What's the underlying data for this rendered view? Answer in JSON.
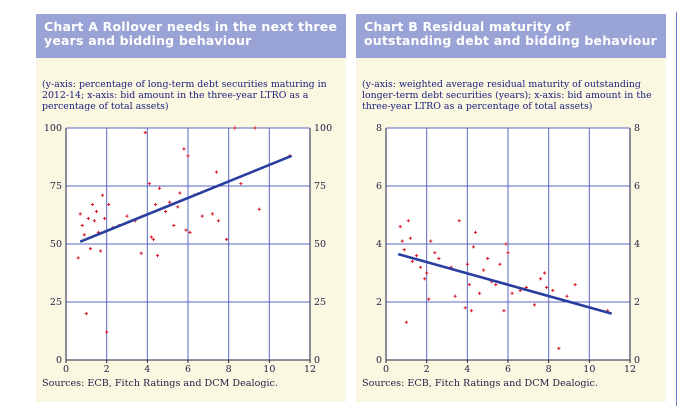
{
  "chart_data": [
    {
      "type": "scatter",
      "title": "Chart A Rollover needs in the next three years and bidding behaviour",
      "note": "(y-axis: percentage of long-term debt securities maturing in 2012-14; x-axis: bid amount in the three-year LTRO as a percentage of total assets)",
      "source": "Sources: ECB, Fitch Ratings and DCM Dealogic.",
      "xlim": [
        0,
        12
      ],
      "ylim": [
        0,
        100
      ],
      "xticks": [
        "0",
        "2",
        "4",
        "6",
        "8",
        "10",
        "12"
      ],
      "yticks": [
        "0",
        "25",
        "50",
        "75",
        "100"
      ],
      "grid": true,
      "points": [
        [
          0.6,
          44
        ],
        [
          0.7,
          63
        ],
        [
          0.8,
          58
        ],
        [
          0.9,
          54
        ],
        [
          1.0,
          20
        ],
        [
          1.1,
          61
        ],
        [
          1.2,
          48
        ],
        [
          1.3,
          67
        ],
        [
          1.4,
          60
        ],
        [
          1.5,
          64
        ],
        [
          1.6,
          55
        ],
        [
          1.7,
          47
        ],
        [
          1.8,
          71
        ],
        [
          1.9,
          61
        ],
        [
          2.0,
          12
        ],
        [
          2.1,
          67
        ],
        [
          2.3,
          57
        ],
        [
          2.6,
          58
        ],
        [
          3.0,
          62
        ],
        [
          3.4,
          60
        ],
        [
          3.7,
          46
        ],
        [
          3.9,
          98
        ],
        [
          4.1,
          76
        ],
        [
          4.2,
          53
        ],
        [
          4.3,
          52
        ],
        [
          4.4,
          67
        ],
        [
          4.5,
          45
        ],
        [
          4.6,
          74
        ],
        [
          4.9,
          64
        ],
        [
          5.1,
          68
        ],
        [
          5.3,
          58
        ],
        [
          5.5,
          66
        ],
        [
          5.6,
          72
        ],
        [
          5.8,
          91
        ],
        [
          5.9,
          56
        ],
        [
          6.0,
          88
        ],
        [
          6.1,
          55
        ],
        [
          6.3,
          71
        ],
        [
          6.7,
          62
        ],
        [
          7.2,
          63
        ],
        [
          7.4,
          81
        ],
        [
          7.5,
          60
        ],
        [
          7.9,
          52
        ],
        [
          8.3,
          100
        ],
        [
          8.6,
          76
        ],
        [
          9.3,
          100
        ],
        [
          9.5,
          65
        ],
        [
          11.0,
          88
        ]
      ],
      "trend": [
        [
          0.7,
          51
        ],
        [
          11.1,
          88
        ]
      ]
    },
    {
      "type": "scatter",
      "title": "Chart B Residual maturity of outstanding debt and bidding behaviour",
      "note": "(y-axis: weighted average residual maturity of outstanding longer-term debt securities (years); x-axis: bid amount in the three-year LTRO as a percentage of total assets)",
      "source": "Sources: ECB, Fitch Ratings and DCM Dealogic.",
      "xlim": [
        0,
        12
      ],
      "ylim": [
        0,
        8
      ],
      "xticks": [
        "0",
        "2",
        "4",
        "6",
        "8",
        "10",
        "12"
      ],
      "yticks": [
        "0",
        "2",
        "4",
        "6",
        "8"
      ],
      "grid": true,
      "points": [
        [
          0.7,
          4.6
        ],
        [
          0.8,
          4.1
        ],
        [
          0.9,
          3.8
        ],
        [
          1.0,
          1.3
        ],
        [
          1.1,
          4.8
        ],
        [
          1.2,
          4.2
        ],
        [
          1.3,
          3.4
        ],
        [
          1.5,
          3.6
        ],
        [
          1.7,
          3.2
        ],
        [
          1.9,
          2.8
        ],
        [
          2.0,
          3.0
        ],
        [
          2.1,
          2.1
        ],
        [
          2.2,
          4.1
        ],
        [
          2.4,
          3.7
        ],
        [
          2.6,
          3.5
        ],
        [
          3.2,
          3.2
        ],
        [
          3.4,
          2.2
        ],
        [
          3.6,
          4.8
        ],
        [
          3.9,
          1.8
        ],
        [
          4.0,
          3.3
        ],
        [
          4.1,
          2.6
        ],
        [
          4.2,
          1.7
        ],
        [
          4.3,
          3.9
        ],
        [
          4.4,
          4.4
        ],
        [
          4.6,
          2.3
        ],
        [
          4.8,
          3.1
        ],
        [
          5.0,
          3.5
        ],
        [
          5.2,
          2.7
        ],
        [
          5.4,
          2.6
        ],
        [
          5.6,
          3.3
        ],
        [
          5.8,
          1.7
        ],
        [
          5.9,
          4.0
        ],
        [
          6.0,
          3.7
        ],
        [
          6.2,
          2.3
        ],
        [
          6.6,
          2.4
        ],
        [
          6.9,
          2.5
        ],
        [
          7.3,
          1.9
        ],
        [
          7.6,
          2.8
        ],
        [
          7.8,
          3.0
        ],
        [
          7.9,
          2.5
        ],
        [
          8.2,
          2.4
        ],
        [
          8.5,
          0.4
        ],
        [
          8.9,
          2.2
        ],
        [
          9.3,
          2.6
        ],
        [
          10.9,
          1.7
        ]
      ],
      "trend": [
        [
          0.6,
          3.65
        ],
        [
          11.1,
          1.6
        ]
      ]
    }
  ]
}
